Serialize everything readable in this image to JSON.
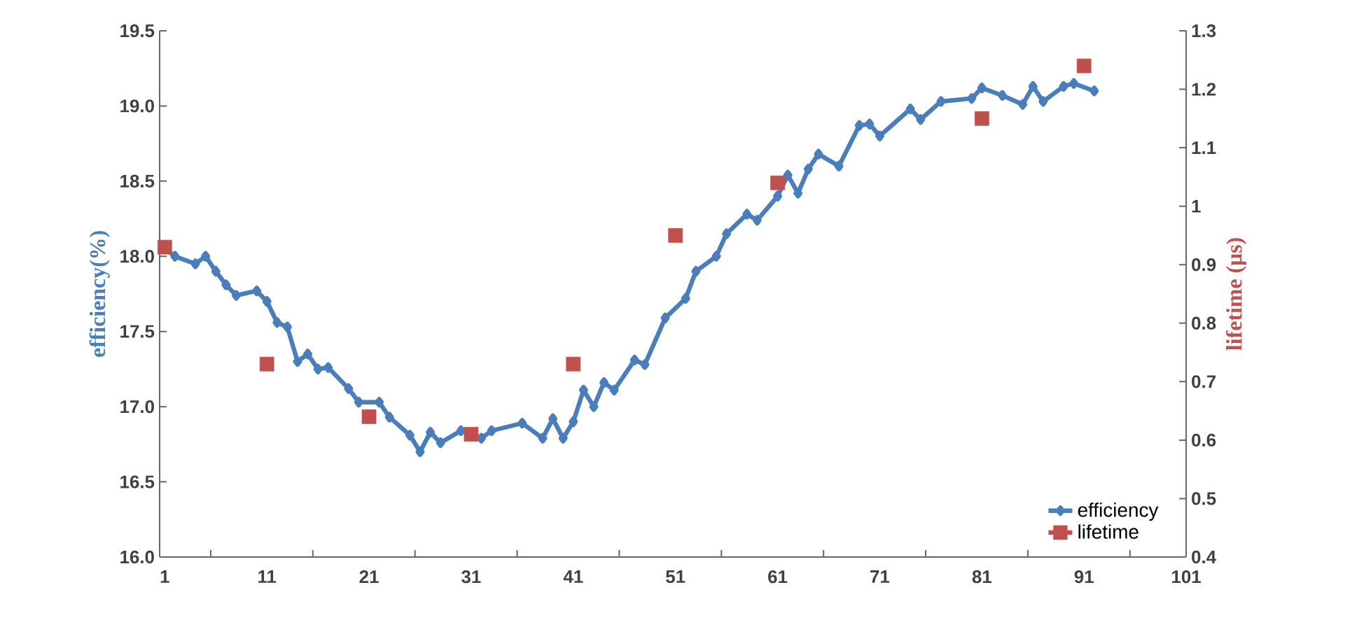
{
  "chart_data": {
    "type": "line",
    "ylabel": "efficiency(%)",
    "y2label": "lifetime (μs)",
    "xlim": [
      0.5,
      101
    ],
    "xticks": [
      1,
      11,
      21,
      31,
      41,
      51,
      61,
      71,
      81,
      91,
      101,
      {
        "value": 5.5,
        "label": null
      },
      {
        "value": 15.5,
        "label": null
      },
      {
        "value": 25.5,
        "label": null
      },
      {
        "value": 35.5,
        "label": null
      },
      {
        "value": 45.5,
        "label": null
      },
      {
        "value": 55.5,
        "label": null
      },
      {
        "value": 65.5,
        "label": null
      },
      {
        "value": 75.5,
        "label": null
      },
      {
        "value": 85.5,
        "label": null
      },
      {
        "value": 95.5,
        "label": null
      }
    ],
    "ylim": [
      16,
      19.5
    ],
    "yticks": [
      {
        "value": 16,
        "label": "16.0"
      },
      16.5,
      {
        "value": 17,
        "label": "17.0"
      },
      17.5,
      {
        "value": 18,
        "label": "18.0"
      },
      18.5,
      {
        "value": 19,
        "label": "19.0"
      },
      19.5
    ],
    "y2lim": [
      0.4,
      1.3
    ],
    "y2ticks": [
      0.4,
      0.5,
      0.6,
      0.7,
      0.8,
      0.9,
      1,
      1.1,
      1.2,
      1.3
    ],
    "legend": "bottom right",
    "series": [
      {
        "name": "efficiency",
        "marker": "diamond",
        "color": "#4a7ebb",
        "x": [
          1,
          2,
          4,
          5,
          6,
          7,
          8,
          10,
          11,
          12,
          13,
          14,
          15,
          16,
          17,
          19,
          20,
          22,
          23,
          25,
          26,
          27,
          28,
          30,
          32,
          33,
          36,
          38,
          39,
          40,
          41,
          42,
          43,
          44,
          45,
          47,
          48,
          50,
          52,
          53,
          55,
          56,
          58,
          59,
          61,
          62,
          63,
          64,
          65,
          67,
          69,
          70,
          71,
          74,
          75,
          77,
          80,
          81,
          83,
          85,
          86,
          87,
          89,
          90,
          92
        ],
        "values": [
          18.05,
          18.0,
          17.95,
          18.0,
          17.9,
          17.81,
          17.74,
          17.77,
          17.7,
          17.56,
          17.53,
          17.3,
          17.35,
          17.25,
          17.26,
          17.12,
          17.03,
          17.03,
          16.93,
          16.81,
          16.7,
          16.83,
          16.76,
          16.84,
          16.79,
          16.84,
          16.89,
          16.79,
          16.92,
          16.79,
          16.9,
          17.11,
          17.0,
          17.16,
          17.11,
          17.31,
          17.28,
          17.59,
          17.72,
          17.9,
          18.0,
          18.15,
          18.28,
          18.24,
          18.4,
          18.54,
          18.42,
          18.58,
          18.68,
          18.6,
          18.87,
          18.88,
          18.8,
          18.98,
          18.91,
          19.03,
          19.05,
          19.12,
          19.07,
          19.01,
          19.13,
          19.03,
          19.13,
          19.15,
          19.1
        ]
      },
      {
        "name": "lifetime",
        "type": "scatter",
        "marker": "square",
        "axis": "y2",
        "color": "#c0504d",
        "x": [
          1,
          11,
          21,
          31,
          41,
          51,
          61,
          81,
          91
        ],
        "values": [
          0.93,
          0.73,
          0.64,
          0.61,
          0.73,
          0.95,
          1.04,
          1.15,
          1.24
        ]
      }
    ]
  }
}
